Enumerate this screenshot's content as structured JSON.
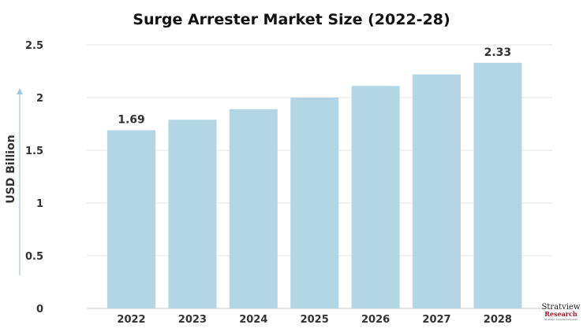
{
  "chart_data": {
    "type": "bar",
    "title": "Surge Arrester Market Size (2022-28)",
    "categories": [
      "2022",
      "2023",
      "2024",
      "2025",
      "2026",
      "2027",
      "2028"
    ],
    "values": [
      1.69,
      1.79,
      1.89,
      2.0,
      2.11,
      2.22,
      2.33
    ],
    "data_labels": {
      "2022": "1.69",
      "2028": "2.33"
    },
    "xlabel": "",
    "ylabel": "USD Billion",
    "ylim": [
      0,
      2.5
    ],
    "yticks": [
      "0",
      "0.5",
      "1",
      "1.5",
      "2",
      "2.5"
    ],
    "grid": true,
    "bar_color": "#b3d6e4"
  },
  "logo": {
    "name": "Stratview",
    "sub": "Research",
    "tagline": "Strategic Insights Delivered"
  }
}
